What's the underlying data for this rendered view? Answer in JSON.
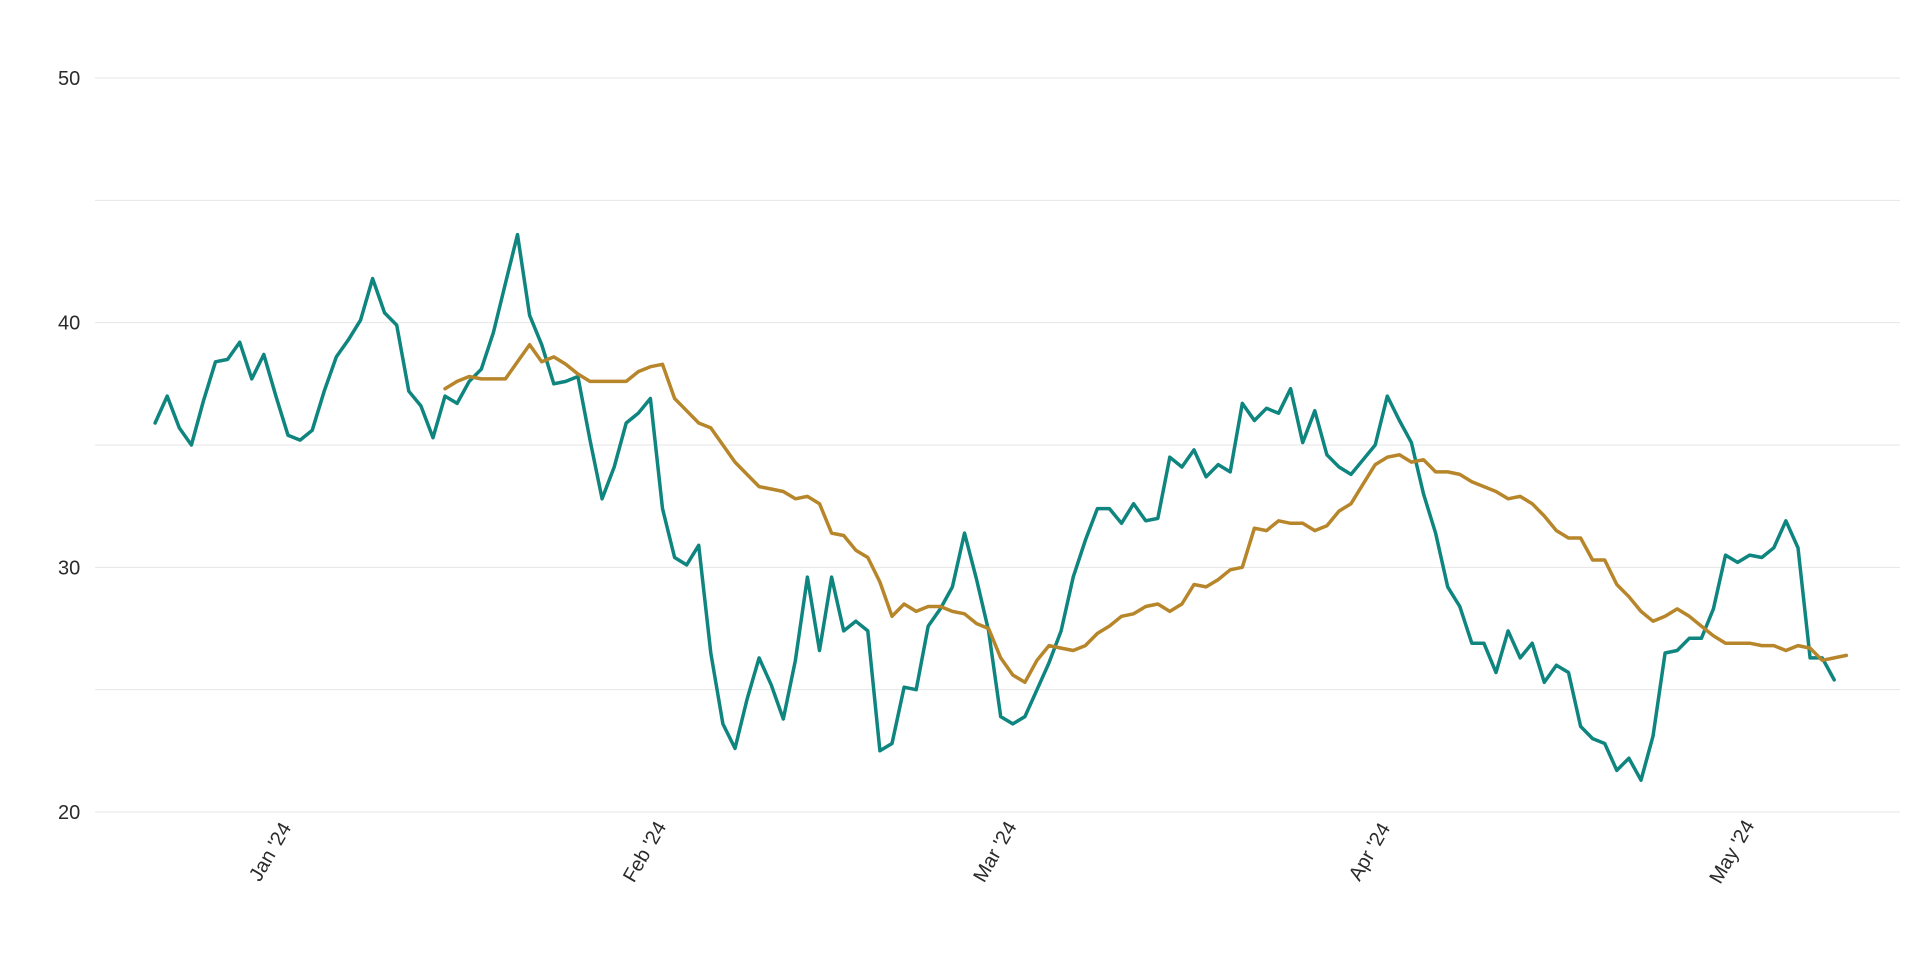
{
  "chart_data": {
    "type": "line",
    "title": "",
    "xlabel": "",
    "ylabel": "",
    "x_start": "2023-12-21",
    "x_end": "2024-05-09",
    "ylim": [
      20,
      50
    ],
    "yticks": [
      {
        "value": 20,
        "label": "20"
      },
      {
        "value": 30,
        "label": "30"
      },
      {
        "value": 40,
        "label": "40"
      },
      {
        "value": 50,
        "label": "50"
      }
    ],
    "y_gridlines": [
      20,
      25,
      30,
      35,
      40,
      45,
      50
    ],
    "xticks": [
      {
        "date": "2024-01-01",
        "label": "Jan '24"
      },
      {
        "date": "2024-02-01",
        "label": "Feb '24"
      },
      {
        "date": "2024-03-01",
        "label": "Mar '24"
      },
      {
        "date": "2024-04-01",
        "label": "Apr '24"
      },
      {
        "date": "2024-05-01",
        "label": "May '24"
      }
    ],
    "grid": true,
    "legend": "none",
    "series": [
      {
        "color": "#0f8580",
        "start_date": "2023-12-21",
        "values": [
          35.9,
          37.0,
          35.7,
          35.0,
          36.8,
          38.4,
          38.5,
          39.2,
          37.7,
          38.7,
          37.0,
          35.4,
          35.2,
          35.6,
          37.2,
          38.6,
          39.3,
          40.1,
          41.8,
          40.4,
          39.9,
          37.2,
          36.6,
          35.3,
          37.0,
          36.7,
          37.6,
          38.1,
          39.6,
          41.6,
          43.6,
          40.3,
          39.1,
          37.5,
          37.6,
          37.8,
          35.2,
          32.8,
          34.1,
          35.9,
          36.3,
          36.9,
          32.4,
          30.4,
          30.1,
          30.9,
          26.5,
          23.6,
          22.6,
          24.6,
          26.3,
          25.2,
          23.8,
          26.2,
          29.6,
          26.6,
          29.6,
          27.4,
          27.8,
          27.4,
          22.5,
          22.8,
          25.1,
          25.0,
          27.6,
          28.3,
          29.2,
          31.4,
          29.5,
          27.4,
          23.9,
          23.6,
          23.9,
          25.0,
          26.1,
          27.4,
          29.6,
          31.1,
          32.4,
          32.4,
          31.8,
          32.6,
          31.9,
          32.0,
          34.5,
          34.1,
          34.8,
          33.7,
          34.2,
          33.9,
          36.7,
          36.0,
          36.5,
          36.3,
          37.3,
          35.1,
          36.4,
          34.6,
          34.1,
          33.8,
          34.4,
          35.0,
          37.0,
          36.0,
          35.1,
          33.0,
          31.4,
          29.2,
          28.4,
          26.9,
          26.9,
          25.7,
          27.4,
          26.3,
          26.9,
          25.3,
          26.0,
          25.7,
          23.5,
          23.0,
          22.8,
          21.7,
          22.2,
          21.3,
          23.1,
          26.5,
          26.6,
          27.1,
          27.1,
          28.3,
          30.5,
          30.2,
          30.5,
          30.4,
          30.8,
          31.9,
          30.8,
          26.3,
          26.3,
          25.4
        ]
      },
      {
        "color": "#b8862a",
        "start_date": "2024-01-14",
        "values": [
          37.3,
          37.6,
          37.8,
          37.7,
          37.7,
          37.7,
          38.4,
          39.1,
          38.4,
          38.6,
          38.3,
          37.9,
          37.6,
          37.6,
          37.6,
          37.6,
          38.0,
          38.2,
          38.3,
          36.9,
          36.4,
          35.9,
          35.7,
          35.0,
          34.3,
          33.8,
          33.3,
          33.2,
          33.1,
          32.8,
          32.9,
          32.6,
          31.4,
          31.3,
          30.7,
          30.4,
          29.4,
          28.0,
          28.5,
          28.2,
          28.4,
          28.4,
          28.2,
          28.1,
          27.7,
          27.5,
          26.3,
          25.6,
          25.3,
          26.2,
          26.8,
          26.7,
          26.6,
          26.8,
          27.3,
          27.6,
          28.0,
          28.1,
          28.4,
          28.5,
          28.2,
          28.5,
          29.3,
          29.2,
          29.5,
          29.9,
          30.0,
          31.6,
          31.5,
          31.9,
          31.8,
          31.8,
          31.5,
          31.7,
          32.3,
          32.6,
          33.4,
          34.2,
          34.5,
          34.6,
          34.3,
          34.4,
          33.9,
          33.9,
          33.8,
          33.5,
          33.3,
          33.1,
          32.8,
          32.9,
          32.6,
          32.1,
          31.5,
          31.2,
          31.2,
          30.3,
          30.3,
          29.3,
          28.8,
          28.2,
          27.8,
          28.0,
          28.3,
          28.0,
          27.6,
          27.2,
          26.9,
          26.9,
          26.9,
          26.8,
          26.8,
          26.6,
          26.8,
          26.7,
          26.2,
          26.3,
          26.4
        ]
      }
    ]
  }
}
